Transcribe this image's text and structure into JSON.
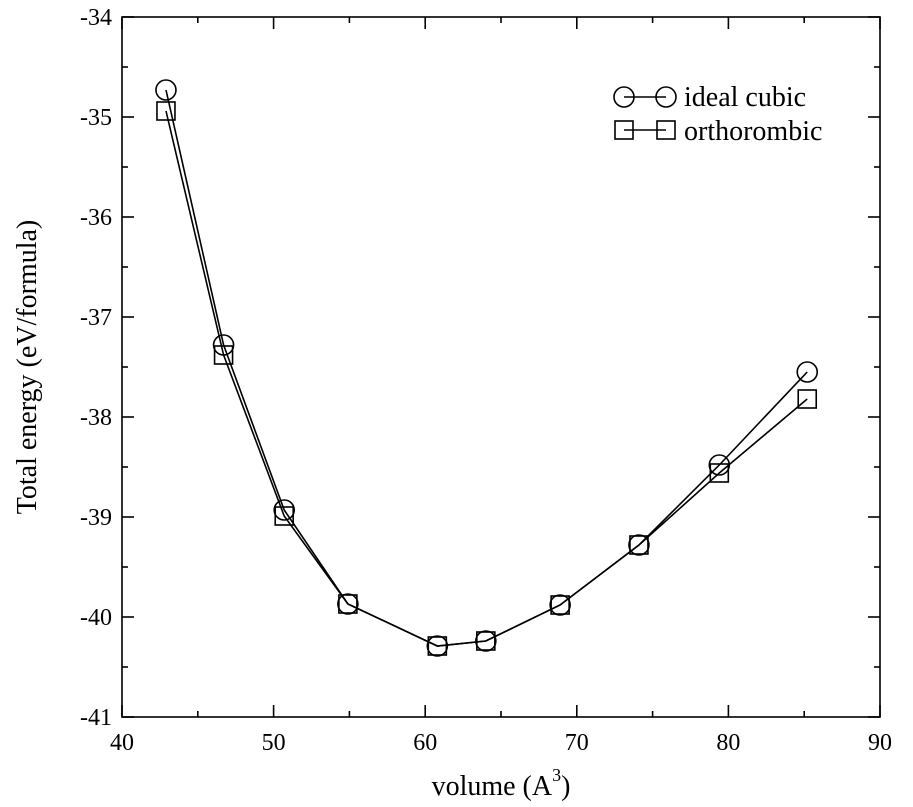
{
  "chart_data": {
    "type": "line",
    "title": "",
    "xlabel": "volume (A",
    "xlabel_sup": "3",
    "xlabel_close": ")",
    "ylabel": "Total energy (eV/formula)",
    "xlim": [
      40,
      90
    ],
    "ylim": [
      -41,
      -34
    ],
    "xticks": [
      40,
      50,
      60,
      70,
      80,
      90
    ],
    "yticks": [
      -41,
      -40,
      -39,
      -38,
      -37,
      -36,
      -35,
      -34
    ],
    "x_minor_step": 5,
    "y_minor_step": 0.5,
    "grid": false,
    "legend_position": "top-right",
    "series": [
      {
        "name": "ideal cubic",
        "marker": "circle",
        "x": [
          42.9,
          46.7,
          50.7,
          54.9,
          60.8,
          64.0,
          68.9,
          74.1,
          79.4,
          85.2
        ],
        "y": [
          -34.73,
          -37.28,
          -38.93,
          -39.87,
          -40.29,
          -40.24,
          -39.88,
          -39.28,
          -38.48,
          -37.55
        ]
      },
      {
        "name": "orthorombic",
        "marker": "square",
        "x": [
          42.9,
          46.7,
          50.7,
          54.9,
          60.8,
          64.0,
          68.9,
          74.1,
          79.4,
          85.2
        ],
        "y": [
          -34.94,
          -37.38,
          -38.99,
          -39.87,
          -40.29,
          -40.24,
          -39.88,
          -39.28,
          -38.56,
          -37.82
        ]
      }
    ]
  }
}
